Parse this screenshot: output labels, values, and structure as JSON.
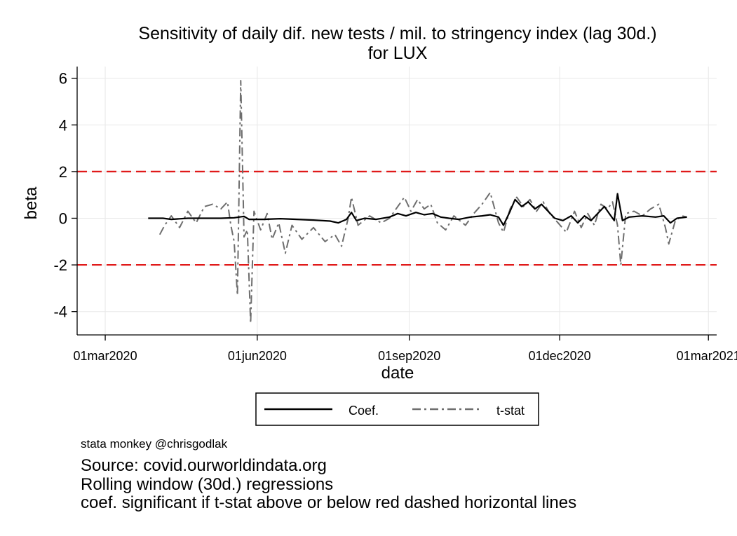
{
  "chart_data": {
    "type": "line",
    "title": [
      "Sensitivity of daily dif. new tests / mil. to stringency index (lag 30d.)",
      "for LUX"
    ],
    "xlabel": "date",
    "ylabel": "beta",
    "x_range": [
      "2020-02-13",
      "2021-03-06"
    ],
    "ylim": [
      -5,
      6.5
    ],
    "x_ticks": [
      {
        "date": "2020-03-01",
        "label": "01mar2020"
      },
      {
        "date": "2020-06-01",
        "label": "01jun2020"
      },
      {
        "date": "2020-09-01",
        "label": "01sep2020"
      },
      {
        "date": "2020-12-01",
        "label": "01dec2020"
      },
      {
        "date": "2021-03-01",
        "label": "01mar2021"
      }
    ],
    "y_ticks": [
      6,
      4,
      2,
      0,
      -2,
      -4
    ],
    "y_tick_labels": [
      "6",
      "4",
      "2",
      "0",
      "-2",
      "-4"
    ],
    "grid": true,
    "reference_lines": [
      {
        "y": 2,
        "style": "dashed",
        "color": "#e01a1a"
      },
      {
        "y": -2,
        "style": "dashed",
        "color": "#e01a1a"
      }
    ],
    "legend": {
      "position": "bottom",
      "entries": [
        "Coef.",
        "t-stat"
      ]
    },
    "series": [
      {
        "name": "Coef.",
        "color": "#000000",
        "style": "solid",
        "points": [
          [
            "2020-03-27",
            0.0
          ],
          [
            "2020-04-05",
            0.0
          ],
          [
            "2020-04-10",
            -0.05
          ],
          [
            "2020-04-20",
            0.0
          ],
          [
            "2020-05-01",
            0.0
          ],
          [
            "2020-05-10",
            0.0
          ],
          [
            "2020-05-18",
            0.02
          ],
          [
            "2020-05-24",
            0.08
          ],
          [
            "2020-05-27",
            -0.05
          ],
          [
            "2020-06-05",
            -0.05
          ],
          [
            "2020-06-15",
            -0.02
          ],
          [
            "2020-06-25",
            -0.05
          ],
          [
            "2020-07-05",
            -0.08
          ],
          [
            "2020-07-15",
            -0.12
          ],
          [
            "2020-07-20",
            -0.2
          ],
          [
            "2020-07-25",
            -0.05
          ],
          [
            "2020-07-28",
            0.25
          ],
          [
            "2020-07-31",
            -0.1
          ],
          [
            "2020-08-05",
            0.0
          ],
          [
            "2020-08-12",
            -0.05
          ],
          [
            "2020-08-20",
            0.05
          ],
          [
            "2020-08-25",
            0.2
          ],
          [
            "2020-08-30",
            0.1
          ],
          [
            "2020-09-05",
            0.25
          ],
          [
            "2020-09-10",
            0.15
          ],
          [
            "2020-09-15",
            0.2
          ],
          [
            "2020-09-20",
            0.05
          ],
          [
            "2020-09-25",
            0.0
          ],
          [
            "2020-10-01",
            -0.05
          ],
          [
            "2020-10-08",
            0.05
          ],
          [
            "2020-10-15",
            0.1
          ],
          [
            "2020-10-20",
            0.15
          ],
          [
            "2020-10-25",
            0.05
          ],
          [
            "2020-10-28",
            -0.3
          ],
          [
            "2020-11-01",
            0.3
          ],
          [
            "2020-11-04",
            0.8
          ],
          [
            "2020-11-08",
            0.5
          ],
          [
            "2020-11-12",
            0.7
          ],
          [
            "2020-11-16",
            0.4
          ],
          [
            "2020-11-20",
            0.6
          ],
          [
            "2020-11-24",
            0.3
          ],
          [
            "2020-11-28",
            0.0
          ],
          [
            "2020-12-03",
            -0.1
          ],
          [
            "2020-12-08",
            0.1
          ],
          [
            "2020-12-12",
            -0.2
          ],
          [
            "2020-12-16",
            0.1
          ],
          [
            "2020-12-20",
            -0.1
          ],
          [
            "2020-12-24",
            0.2
          ],
          [
            "2020-12-28",
            0.5
          ],
          [
            "2020-12-31",
            0.2
          ],
          [
            "2021-01-03",
            -0.1
          ],
          [
            "2021-01-05",
            1.05
          ],
          [
            "2021-01-08",
            -0.1
          ],
          [
            "2021-01-12",
            0.05
          ],
          [
            "2021-01-20",
            0.1
          ],
          [
            "2021-01-28",
            0.05
          ],
          [
            "2021-02-02",
            0.1
          ],
          [
            "2021-02-06",
            -0.2
          ],
          [
            "2021-02-10",
            0.0
          ],
          [
            "2021-02-16",
            0.05
          ]
        ]
      },
      {
        "name": "t-stat",
        "color": "#6e6e6e",
        "style": "dash-dot",
        "points": [
          [
            "2020-04-03",
            -0.7
          ],
          [
            "2020-04-06",
            -0.3
          ],
          [
            "2020-04-10",
            0.1
          ],
          [
            "2020-04-15",
            -0.4
          ],
          [
            "2020-04-20",
            0.3
          ],
          [
            "2020-04-25",
            -0.2
          ],
          [
            "2020-04-30",
            0.5
          ],
          [
            "2020-05-05",
            0.6
          ],
          [
            "2020-05-10",
            0.4
          ],
          [
            "2020-05-14",
            0.7
          ],
          [
            "2020-05-16",
            -0.3
          ],
          [
            "2020-05-18",
            -1.0
          ],
          [
            "2020-05-20",
            -3.3
          ],
          [
            "2020-05-22",
            5.9
          ],
          [
            "2020-05-24",
            -0.8
          ],
          [
            "2020-05-26",
            -0.5
          ],
          [
            "2020-05-28",
            -4.5
          ],
          [
            "2020-05-30",
            0.3
          ],
          [
            "2020-06-03",
            -0.5
          ],
          [
            "2020-06-07",
            0.2
          ],
          [
            "2020-06-10",
            -0.9
          ],
          [
            "2020-06-14",
            -0.2
          ],
          [
            "2020-06-18",
            -1.5
          ],
          [
            "2020-06-22",
            -0.3
          ],
          [
            "2020-06-28",
            -0.9
          ],
          [
            "2020-07-05",
            -0.4
          ],
          [
            "2020-07-12",
            -1.0
          ],
          [
            "2020-07-18",
            -0.7
          ],
          [
            "2020-07-22",
            -1.2
          ],
          [
            "2020-07-26",
            0.0
          ],
          [
            "2020-07-28",
            0.9
          ],
          [
            "2020-08-01",
            -0.3
          ],
          [
            "2020-08-08",
            0.1
          ],
          [
            "2020-08-15",
            -0.2
          ],
          [
            "2020-08-20",
            0.0
          ],
          [
            "2020-08-25",
            0.5
          ],
          [
            "2020-08-29",
            0.9
          ],
          [
            "2020-09-02",
            0.3
          ],
          [
            "2020-09-06",
            0.8
          ],
          [
            "2020-09-10",
            0.4
          ],
          [
            "2020-09-14",
            0.6
          ],
          [
            "2020-09-18",
            -0.2
          ],
          [
            "2020-09-23",
            -0.5
          ],
          [
            "2020-09-28",
            0.1
          ],
          [
            "2020-10-05",
            -0.3
          ],
          [
            "2020-10-10",
            0.2
          ],
          [
            "2020-10-15",
            0.6
          ],
          [
            "2020-10-20",
            1.1
          ],
          [
            "2020-10-25",
            -0.2
          ],
          [
            "2020-10-28",
            -0.6
          ],
          [
            "2020-11-01",
            0.4
          ],
          [
            "2020-11-05",
            0.9
          ],
          [
            "2020-11-09",
            0.5
          ],
          [
            "2020-11-13",
            0.8
          ],
          [
            "2020-11-17",
            0.3
          ],
          [
            "2020-11-21",
            0.7
          ],
          [
            "2020-11-25",
            0.2
          ],
          [
            "2020-11-30",
            -0.2
          ],
          [
            "2020-12-05",
            -0.6
          ],
          [
            "2020-12-10",
            0.3
          ],
          [
            "2020-12-14",
            -0.4
          ],
          [
            "2020-12-18",
            0.2
          ],
          [
            "2020-12-22",
            -0.3
          ],
          [
            "2020-12-26",
            0.6
          ],
          [
            "2020-12-30",
            0.4
          ],
          [
            "2021-01-02",
            0.7
          ],
          [
            "2021-01-05",
            -0.3
          ],
          [
            "2021-01-07",
            -2.0
          ],
          [
            "2021-01-10",
            0.2
          ],
          [
            "2021-01-15",
            0.3
          ],
          [
            "2021-01-20",
            0.1
          ],
          [
            "2021-01-25",
            0.4
          ],
          [
            "2021-01-30",
            0.6
          ],
          [
            "2021-02-03",
            -0.4
          ],
          [
            "2021-02-05",
            -1.1
          ],
          [
            "2021-02-09",
            -0.1
          ],
          [
            "2021-02-13",
            0.1
          ],
          [
            "2021-02-16",
            0.05
          ]
        ]
      }
    ]
  },
  "footer": {
    "credit": "stata monkey @chrisgodlak",
    "notes": [
      "Source: covid.ourworldindata.org",
      "Rolling window (30d.) regressions",
      "coef. significant if t-stat above or below red dashed horizontal lines"
    ]
  }
}
